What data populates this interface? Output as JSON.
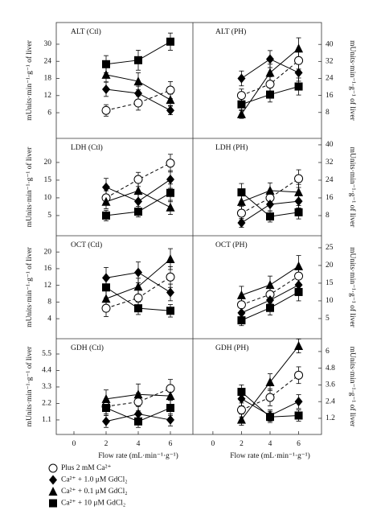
{
  "chart_data": [
    {
      "type": "line",
      "title": "ALT (Ctl)",
      "ylabel": "mUnits·min⁻¹·g⁻¹ of liver",
      "y_axis_side": "left",
      "x": [
        2,
        4,
        6
      ],
      "xlim": [
        -1.1,
        7.4
      ],
      "ylim": [
        -3,
        37.6
      ],
      "yticks": [
        6,
        12,
        18,
        24,
        30
      ],
      "series": [
        {
          "name": "Plus 2 mM Ca²⁺",
          "marker": "open-circle",
          "dashed": true,
          "color": "#000000",
          "values": [
            6.8,
            9.4,
            13.9
          ],
          "errors": [
            2,
            2.5,
            3
          ]
        },
        {
          "name": "Ca²⁺ + 1.0 μM GdCl₂",
          "marker": "diamond",
          "dashed": false,
          "color": "#000000",
          "values": [
            14.2,
            12.8,
            6.8
          ],
          "errors": [
            2.5,
            2.5,
            1.5
          ]
        },
        {
          "name": "Ca²⁺ + 0.1 μM GdCl₂",
          "marker": "triangle",
          "dashed": false,
          "color": "#000000",
          "values": [
            19.3,
            17.0,
            10.5
          ],
          "errors": [
            2.5,
            3,
            2
          ]
        },
        {
          "name": "Ca²⁺ + 10 μM GdCl₂",
          "marker": "square",
          "dashed": false,
          "color": "#000000",
          "values": [
            23,
            24.4,
            30.9
          ],
          "errors": [
            3,
            3.5,
            3
          ]
        }
      ]
    },
    {
      "type": "line",
      "title": "ALT (PH)",
      "ylabel": "mUnits·min⁻¹·g⁻¹ of liver",
      "y_axis_side": "right",
      "x": [
        2,
        4,
        6
      ],
      "xlim": [
        -1.4,
        7.6
      ],
      "ylim": [
        -4.2,
        50.3
      ],
      "yticks": [
        8,
        16,
        24,
        32,
        40
      ],
      "series": [
        {
          "marker": "open-circle",
          "dashed": true,
          "color": "#000000",
          "values": [
            16,
            21.3,
            32.4
          ],
          "errors": [
            3,
            3.5,
            4
          ]
        },
        {
          "marker": "diamond",
          "dashed": false,
          "color": "#000000",
          "values": [
            24,
            33.1,
            26.7
          ],
          "errors": [
            3.5,
            4,
            4
          ]
        },
        {
          "marker": "triangle",
          "dashed": false,
          "color": "#000000",
          "values": [
            7.2,
            26.7,
            38.1
          ],
          "errors": [
            2,
            4,
            5
          ]
        },
        {
          "marker": "square",
          "dashed": false,
          "color": "#000000",
          "values": [
            11.8,
            16.4,
            20.2
          ],
          "errors": [
            3,
            3.5,
            4
          ]
        }
      ]
    },
    {
      "type": "line",
      "title": "LDH (Ctl)",
      "ylabel": "mUnits·min⁻¹·g⁻¹ of liver",
      "y_axis_side": "left",
      "x": [
        2,
        4,
        6
      ],
      "xlim": [
        -1.1,
        7.4
      ],
      "ylim": [
        -0.7,
        26.8
      ],
      "yticks": [
        5,
        10,
        15,
        20
      ],
      "series": [
        {
          "marker": "open-circle",
          "dashed": true,
          "color": "#000000",
          "values": [
            10,
            15.2,
            19.8
          ],
          "errors": [
            2,
            2,
            2.5
          ]
        },
        {
          "marker": "diamond",
          "dashed": false,
          "color": "#000000",
          "values": [
            13,
            9,
            15.2
          ],
          "errors": [
            2.5,
            2,
            2.5
          ]
        },
        {
          "marker": "triangle",
          "dashed": false,
          "color": "#000000",
          "values": [
            8.9,
            12,
            7.3
          ],
          "errors": [
            2,
            2.5,
            2
          ]
        },
        {
          "marker": "square",
          "dashed": false,
          "color": "#000000",
          "values": [
            5,
            6.1,
            11.4
          ],
          "errors": [
            1.5,
            1.5,
            2.5
          ]
        }
      ]
    },
    {
      "type": "line",
      "title": "LDH (PH)",
      "ylabel": "mUnits·min⁻¹·g⁻¹ of liver",
      "y_axis_side": "right",
      "x": [
        2,
        4,
        6
      ],
      "xlim": [
        -1.4,
        7.6
      ],
      "ylim": [
        -1.1,
        42.9
      ],
      "yticks": [
        8,
        16,
        24,
        32,
        40
      ],
      "series": [
        {
          "marker": "open-circle",
          "dashed": true,
          "color": "#000000",
          "values": [
            9.1,
            16,
            24.7
          ],
          "errors": [
            3,
            3.5,
            4
          ]
        },
        {
          "marker": "diamond",
          "dashed": false,
          "color": "#000000",
          "values": [
            4.7,
            13.1,
            14.5
          ],
          "errors": [
            2,
            3,
            3
          ]
        },
        {
          "marker": "triangle",
          "dashed": false,
          "color": "#000000",
          "values": [
            14.2,
            19.3,
            18.6
          ],
          "errors": [
            3.5,
            3.5,
            3.5
          ]
        },
        {
          "marker": "square",
          "dashed": false,
          "color": "#000000",
          "values": [
            18.5,
            7.6,
            9.5
          ],
          "errors": [
            4,
            2.5,
            3
          ]
        }
      ]
    },
    {
      "type": "line",
      "title": "OCT (Ctl)",
      "ylabel": "mUnits·min⁻¹·g⁻¹ of liver",
      "y_axis_side": "left",
      "x": [
        2,
        4,
        6
      ],
      "xlim": [
        -1.1,
        7.4
      ],
      "ylim": [
        -0.8,
        23.9
      ],
      "yticks": [
        4,
        8,
        12,
        16,
        20
      ],
      "series": [
        {
          "marker": "open-circle",
          "dashed": true,
          "color": "#000000",
          "values": [
            6.5,
            9,
            14
          ],
          "errors": [
            2,
            2,
            2.5
          ]
        },
        {
          "marker": "diamond",
          "dashed": false,
          "color": "#000000",
          "values": [
            13.8,
            15.1,
            10.3
          ],
          "errors": [
            2.5,
            2.5,
            2
          ]
        },
        {
          "marker": "triangle",
          "dashed": false,
          "color": "#000000",
          "values": [
            8.8,
            11.7,
            18.3
          ],
          "errors": [
            2,
            2,
            2.5
          ]
        },
        {
          "marker": "square",
          "dashed": false,
          "color": "#000000",
          "values": [
            11.5,
            6.5,
            5.9
          ],
          "errors": [
            2.5,
            1.5,
            1.5
          ]
        }
      ]
    },
    {
      "type": "line",
      "title": "OCT (PH)",
      "ylabel": "mUnits·min⁻¹·g⁻¹ of liver",
      "y_axis_side": "right",
      "x": [
        2,
        4,
        6
      ],
      "xlim": [
        -1.4,
        7.6
      ],
      "ylim": [
        -0.7,
        28.4
      ],
      "yticks": [
        5,
        10,
        15,
        20,
        25
      ],
      "series": [
        {
          "marker": "open-circle",
          "dashed": true,
          "color": "#000000",
          "values": [
            8.9,
            11.8,
            17
          ],
          "errors": [
            2,
            2.5,
            2.5
          ]
        },
        {
          "marker": "diamond",
          "dashed": false,
          "color": "#000000",
          "values": [
            6.6,
            10.2,
            14.5
          ],
          "errors": [
            1.5,
            2,
            2.5
          ]
        },
        {
          "marker": "triangle",
          "dashed": false,
          "color": "#000000",
          "values": [
            11.6,
            14.5,
            19.8
          ],
          "errors": [
            2.5,
            2.5,
            3
          ]
        },
        {
          "marker": "square",
          "dashed": false,
          "color": "#000000",
          "values": [
            4.5,
            8,
            12.5
          ],
          "errors": [
            1.5,
            2,
            2.5
          ]
        }
      ]
    },
    {
      "type": "line",
      "title": "GDH (Ctl)",
      "ylabel": "mUnits·min⁻¹·g⁻¹ of liver",
      "xlabel": "Flow rate (mL·min⁻¹·g⁻¹)",
      "y_axis_side": "left",
      "x": [
        2,
        4,
        6
      ],
      "xlim": [
        -1.1,
        7.4
      ],
      "xticks": [
        0,
        2,
        4,
        6
      ],
      "ylim": [
        0.13,
        6.52
      ],
      "yticks": [
        1.1,
        2.2,
        3.3,
        4.4,
        5.5
      ],
      "series": [
        {
          "marker": "open-circle",
          "dashed": true,
          "color": "#000000",
          "values": [
            2.0,
            2.3,
            3.2
          ],
          "errors": [
            0.5,
            0.6,
            0.6
          ]
        },
        {
          "marker": "diamond",
          "dashed": false,
          "color": "#000000",
          "values": [
            1.0,
            1.5,
            1.1
          ],
          "errors": [
            0.4,
            0.5,
            0.4
          ]
        },
        {
          "marker": "triangle",
          "dashed": false,
          "color": "#000000",
          "values": [
            2.5,
            2.8,
            2.7
          ],
          "errors": [
            0.6,
            0.7,
            0.6
          ]
        },
        {
          "marker": "square",
          "dashed": false,
          "color": "#000000",
          "values": [
            1.9,
            1.0,
            1.9
          ],
          "errors": [
            0.5,
            0.4,
            0.5
          ]
        }
      ]
    },
    {
      "type": "line",
      "title": "GDH (PH)",
      "ylabel": "mUnits·min⁻¹·g⁻¹ of liver",
      "xlabel": "Flow rate (mL·min⁻¹·g⁻¹)",
      "y_axis_side": "right",
      "x": [
        2,
        4,
        6
      ],
      "xlim": [
        -1.4,
        7.6
      ],
      "xticks": [
        0,
        2,
        4,
        6
      ],
      "ylim": [
        0.04,
        6.92
      ],
      "yticks": [
        1.2,
        2.4,
        3.6,
        4.8,
        6.0
      ],
      "series": [
        {
          "marker": "open-circle",
          "dashed": true,
          "color": "#000000",
          "values": [
            1.8,
            2.7,
            4.3
          ],
          "errors": [
            0.5,
            0.6,
            0.6
          ]
        },
        {
          "marker": "diamond",
          "dashed": false,
          "color": "#000000",
          "values": [
            2.6,
            1.4,
            2.4
          ],
          "errors": [
            0.5,
            0.4,
            0.5
          ]
        },
        {
          "marker": "triangle",
          "dashed": false,
          "color": "#000000",
          "values": [
            1.1,
            3.8,
            6.4
          ],
          "errors": [
            0.4,
            0.6,
            0.5
          ]
        },
        {
          "marker": "square",
          "dashed": false,
          "color": "#000000",
          "values": [
            3.1,
            1.3,
            1.4
          ],
          "errors": [
            0.5,
            0.4,
            0.4
          ]
        }
      ]
    }
  ]
}
